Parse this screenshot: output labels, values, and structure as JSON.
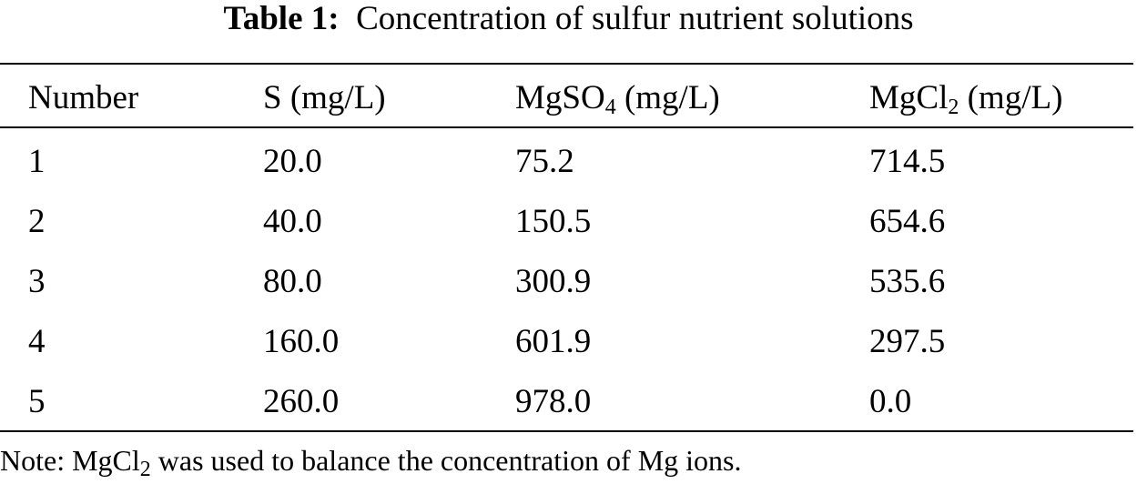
{
  "caption": {
    "label": "Table 1:",
    "text": "Concentration of sulfur nutrient solutions"
  },
  "table": {
    "columns": [
      {
        "pre": "Number",
        "sub": "",
        "post": ""
      },
      {
        "pre": "S (mg/L)",
        "sub": "",
        "post": ""
      },
      {
        "pre": "MgSO",
        "sub": "4",
        "post": " (mg/L)"
      },
      {
        "pre": "MgCl",
        "sub": "2",
        "post": " (mg/L)"
      }
    ],
    "rows": [
      [
        "1",
        "20.0",
        "75.2",
        "714.5"
      ],
      [
        "2",
        "40.0",
        "150.5",
        "654.6"
      ],
      [
        "3",
        "80.0",
        "300.9",
        "535.6"
      ],
      [
        "4",
        "160.0",
        "601.9",
        "297.5"
      ],
      [
        "5",
        "260.0",
        "978.0",
        "0.0"
      ]
    ]
  },
  "note": {
    "pre": "Note: MgCl",
    "sub": "2",
    "post": " was used to balance the concentration of Mg ions."
  }
}
